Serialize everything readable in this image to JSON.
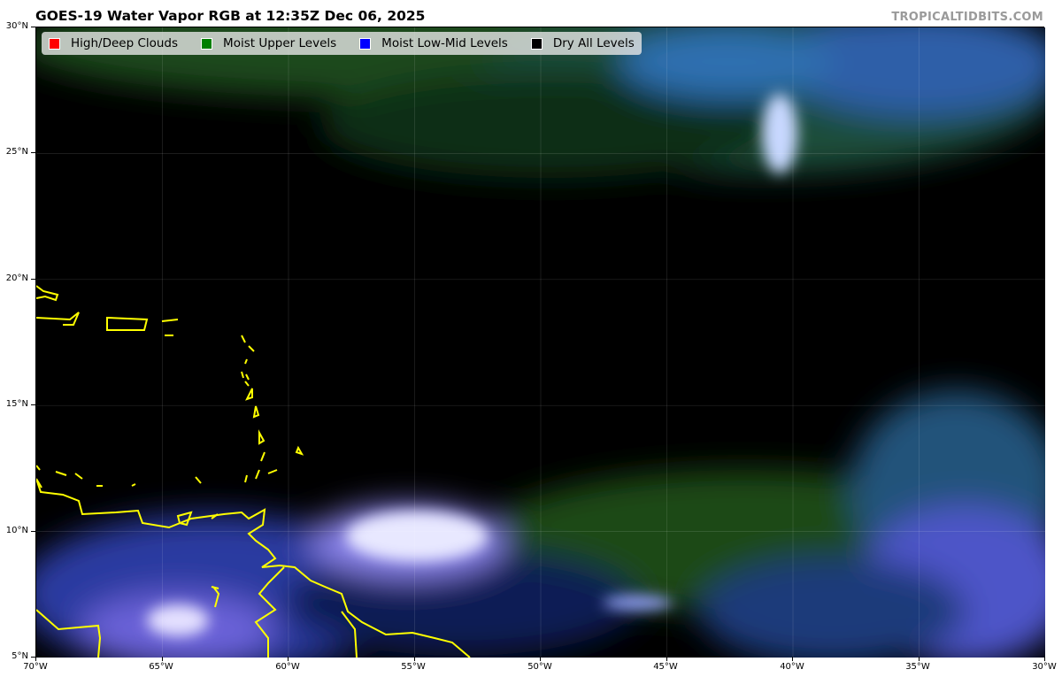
{
  "title": "GOES-19 Water Vapor RGB at 12:35Z Dec 06, 2025",
  "credit": "TROPICALTIDBITS.COM",
  "legend": [
    {
      "label": "High/Deep Clouds",
      "color": "#ff0000"
    },
    {
      "label": "Moist Upper Levels",
      "color": "#008000"
    },
    {
      "label": "Moist Low-Mid Levels",
      "color": "#0000ff"
    },
    {
      "label": "Dry All Levels",
      "color": "#000000"
    }
  ],
  "axes": {
    "lat_ticks": [
      "30°N",
      "25°N",
      "20°N",
      "15°N",
      "10°N",
      "5°N"
    ],
    "lon_ticks": [
      "70°W",
      "65°W",
      "60°W",
      "55°W",
      "50°W",
      "45°W",
      "40°W",
      "35°W",
      "30°W"
    ],
    "lat_range": [
      5,
      30
    ],
    "lon_range": [
      -70,
      -30
    ]
  },
  "colors": {
    "coastline": "#ffff00",
    "background": "#000000"
  }
}
